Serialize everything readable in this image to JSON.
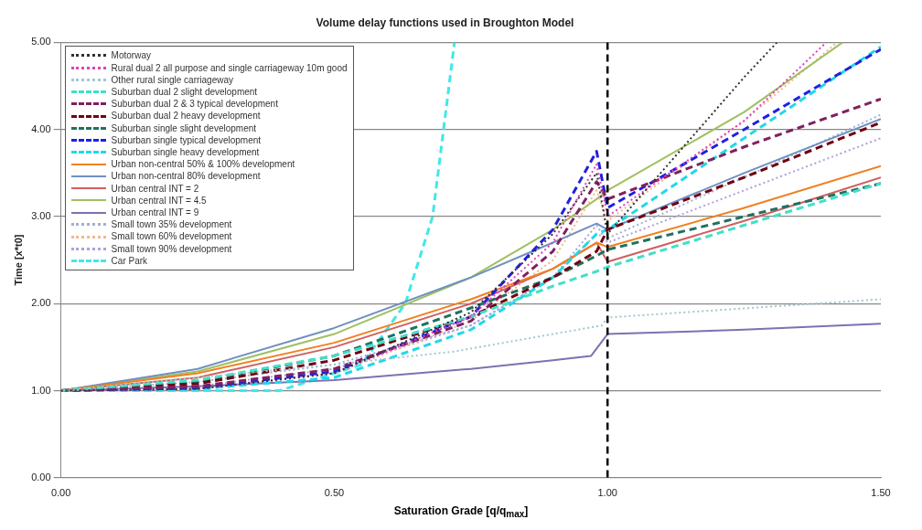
{
  "chart_data": {
    "type": "line",
    "title": "Volume delay functions used in Broughton Model",
    "xlabel": "Saturation Grade [q/q$_{max}$]",
    "ylabel": "Time [x*t0]",
    "x": [
      0,
      0.25,
      0.5,
      0.75,
      0.9,
      0.98,
      1.0,
      1.25,
      1.5
    ],
    "series": [
      {
        "name": "Motorway",
        "color": "#303030",
        "line_style": "dotted",
        "x": [
          0,
          0.25,
          0.5,
          0.75,
          0.9,
          0.98,
          1.0,
          1.25,
          1.31
        ],
        "values": [
          1,
          1.02,
          1.2,
          1.9,
          2.8,
          3.5,
          2.8,
          4.6,
          5.0
        ]
      },
      {
        "name": "Rural dual 2 all purpose and single carriageway 10m good",
        "color": "#e040c0",
        "line_style": "dotted",
        "x": [
          0,
          0.25,
          0.5,
          0.75,
          0.9,
          0.98,
          1.0,
          1.25,
          1.4
        ],
        "values": [
          1,
          1.02,
          1.2,
          1.85,
          2.7,
          3.6,
          3.0,
          4.1,
          5.0
        ]
      },
      {
        "name": "Other rural single carriageway",
        "color": "#a0c8d0",
        "line_style": "dotted",
        "x": [
          0,
          0.25,
          0.5,
          0.72,
          0.99,
          1.0,
          1.5
        ],
        "values": [
          1,
          1.15,
          1.3,
          1.45,
          1.75,
          1.84,
          2.05
        ]
      },
      {
        "name": "Suburban dual 2 slight development",
        "color": "#40e0c8",
        "line_style": "dashed",
        "values": [
          1,
          1.12,
          1.4,
          1.85,
          2.2,
          2.37,
          2.42,
          2.9,
          3.38
        ]
      },
      {
        "name": "Suburban dual 2 & 3 typical development",
        "color": "#802060",
        "line_style": "dashed",
        "values": [
          1,
          1.05,
          1.25,
          1.8,
          2.6,
          3.4,
          3.2,
          3.8,
          4.35
        ]
      },
      {
        "name": "Suburban dual 2 heavy development",
        "color": "#700010",
        "line_style": "dashed",
        "values": [
          1,
          1.08,
          1.35,
          1.85,
          2.3,
          2.6,
          2.85,
          3.45,
          4.08
        ]
      },
      {
        "name": "Suburban single slight development",
        "color": "#207060",
        "line_style": "dashed",
        "values": [
          1,
          1.1,
          1.4,
          1.95,
          2.3,
          2.55,
          2.62,
          3.0,
          3.38
        ]
      },
      {
        "name": "Suburban single typical development",
        "color": "#2020e0",
        "line_style": "dashed",
        "values": [
          1,
          1.03,
          1.22,
          1.85,
          2.85,
          3.75,
          3.1,
          4.0,
          4.92
        ]
      },
      {
        "name": "Suburban single heavy development",
        "color": "#20d8e8",
        "line_style": "dashed",
        "values": [
          1,
          1.02,
          1.15,
          1.7,
          2.3,
          2.8,
          2.85,
          3.9,
          4.95
        ]
      },
      {
        "name": "Urban non-central 50% & 100% development",
        "color": "#f08020",
        "line_style": "solid",
        "values": [
          1,
          1.2,
          1.55,
          2.05,
          2.4,
          2.7,
          2.65,
          3.1,
          3.58
        ]
      },
      {
        "name": "Urban non-central 80% development",
        "color": "#7090c0",
        "line_style": "solid",
        "values": [
          1,
          1.25,
          1.72,
          2.3,
          2.7,
          2.92,
          2.85,
          3.5,
          4.12
        ]
      },
      {
        "name": "Urban central INT = 2",
        "color": "#d06060",
        "line_style": "solid",
        "values": [
          1,
          1.15,
          1.5,
          2.0,
          2.4,
          2.7,
          2.48,
          2.95,
          3.45
        ]
      },
      {
        "name": "Urban central INT = 4.5",
        "color": "#a0c060",
        "line_style": "solid",
        "x": [
          0,
          0.25,
          0.5,
          0.75,
          0.9,
          0.98,
          1.0,
          1.25,
          1.43
        ],
        "values": [
          1,
          1.22,
          1.65,
          2.3,
          2.85,
          3.2,
          3.3,
          4.2,
          5.0
        ]
      },
      {
        "name": "Urban central INT = 9",
        "color": "#8070b0",
        "line_style": "solid",
        "x": [
          0,
          0.25,
          0.5,
          0.75,
          0.9,
          0.97,
          1.0,
          1.25,
          1.5
        ],
        "values": [
          1,
          1.05,
          1.12,
          1.25,
          1.35,
          1.4,
          1.65,
          1.7,
          1.77
        ]
      },
      {
        "name": "Small town 35% development",
        "color": "#a0b0d0",
        "line_style": "dotted",
        "values": [
          1,
          1.1,
          1.3,
          1.75,
          2.3,
          2.8,
          2.75,
          3.45,
          4.17
        ]
      },
      {
        "name": "Small town 60% development",
        "color": "#f0b890",
        "line_style": "dotted",
        "x": [
          0,
          0.25,
          0.5,
          0.75,
          0.9,
          0.98,
          1.0,
          1.25,
          1.42
        ],
        "values": [
          1,
          1.03,
          1.2,
          1.8,
          2.5,
          3.3,
          2.95,
          4.1,
          5.0
        ]
      },
      {
        "name": "Small town 90% development",
        "color": "#b0a0d8",
        "line_style": "dotted",
        "values": [
          1,
          1.05,
          1.25,
          1.75,
          2.3,
          2.9,
          2.7,
          3.3,
          3.9
        ]
      },
      {
        "name": "Car Park",
        "color": "#40e8e8",
        "line_style": "dashed",
        "x": [
          0,
          0.4,
          0.55,
          0.63,
          0.68,
          0.72
        ],
        "values": [
          1,
          1.0,
          1.3,
          2.0,
          3.0,
          5.0
        ]
      }
    ],
    "xlim": [
      0,
      1.5
    ],
    "xticks": [
      {
        "value": 0,
        "label": "0.00"
      },
      {
        "value": 0.5,
        "label": "0.50"
      },
      {
        "value": 1.0,
        "label": "1.00"
      },
      {
        "value": 1.5,
        "label": "1.50"
      }
    ],
    "ylim": [
      0,
      5
    ],
    "yticks": [
      {
        "value": 0,
        "label": "0.00"
      },
      {
        "value": 1,
        "label": "1.00"
      },
      {
        "value": 2,
        "label": "2.00"
      },
      {
        "value": 3,
        "label": "3.00"
      },
      {
        "value": 4,
        "label": "4.00"
      },
      {
        "value": 5,
        "label": "5.00"
      }
    ],
    "grid": "y",
    "legend": "top left",
    "marker": "none",
    "ref_lines": [
      {
        "axis": "x",
        "value": 1.0,
        "color": "#000000",
        "line_style": "dashed"
      }
    ]
  }
}
